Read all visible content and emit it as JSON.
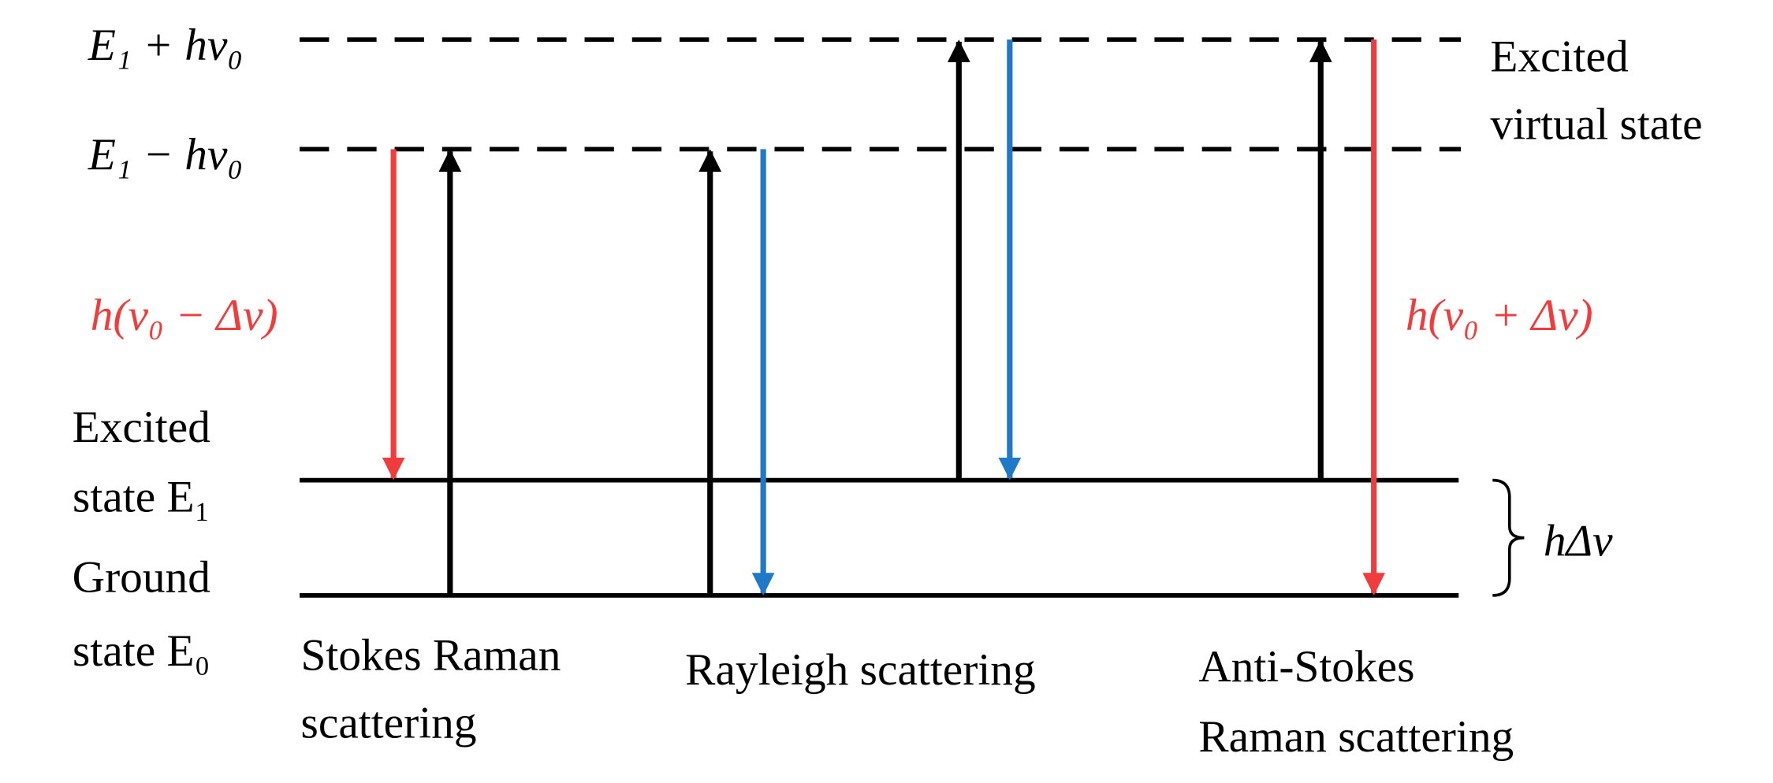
{
  "levels": {
    "virtual_upper": "E₁ + hν₀",
    "virtual_lower": "E₁ − hν₀",
    "virtual_state": [
      "Excited",
      "virtual state"
    ],
    "excited_state": [
      "Excited",
      "state E₁"
    ],
    "ground_state": [
      "Ground",
      "state E₀"
    ]
  },
  "energy_gap": "hΔν",
  "transitions": {
    "stokes_emission": "h(ν₀ − Δν)",
    "anti_stokes_emission": "h(ν₀ + Δν)"
  },
  "processes": [
    [
      "Stokes Raman",
      "scattering"
    ],
    [
      "Rayleigh scattering"
    ],
    [
      "Anti-Stokes",
      "Raman scattering"
    ]
  ]
}
